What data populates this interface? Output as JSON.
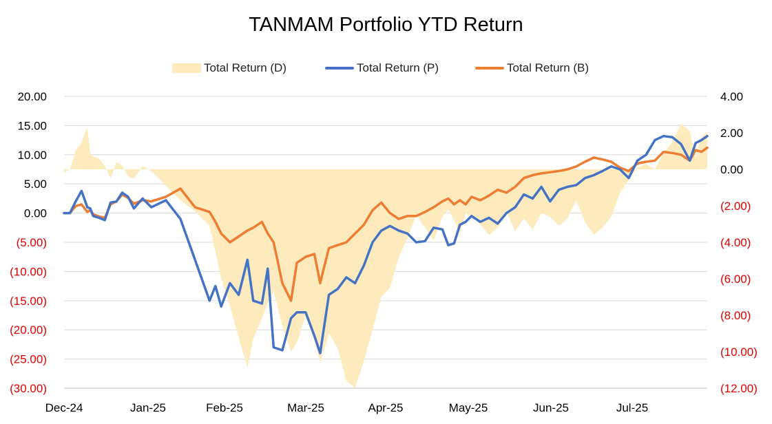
{
  "chart_data": {
    "type": "line",
    "title": "TANMAM Portfolio YTD Return",
    "xlabel": "",
    "ylabel": "",
    "x_ticks": [
      "Dec-24",
      "Jan-25",
      "Feb-25",
      "Mar-25",
      "Apr-25",
      "May-25",
      "Jun-25",
      "Jul-25"
    ],
    "y_left": {
      "range": [
        -30,
        20
      ],
      "ticks": [
        "20.00",
        "15.00",
        "10.00",
        "5.00",
        "0.00",
        "(5.00)",
        "(10.00)",
        "(15.00)",
        "(20.00)",
        "(25.00)",
        "(30.00)"
      ]
    },
    "y_right": {
      "range": [
        -12,
        4
      ],
      "ticks": [
        "4.00",
        "2.00",
        "0.00",
        "(2.00)",
        "(4.00)",
        "(6.00)",
        "(8.00)",
        "(10.00)",
        "(12.00)"
      ]
    },
    "negative_tick_color": "#e00000",
    "grid": true,
    "legend_position": "top",
    "series": [
      {
        "name": "Total Return (D)",
        "kind": "area",
        "axis": "right",
        "color": "#fdebbd",
        "x": [
          0,
          2,
          4,
          6,
          8,
          9,
          10,
          12,
          14,
          16,
          18,
          20,
          22,
          24,
          27,
          30,
          35,
          40,
          45,
          50,
          52,
          54,
          57,
          60,
          63,
          65,
          68,
          70,
          72,
          75,
          78,
          80,
          83,
          86,
          88,
          91,
          94,
          97,
          100,
          103,
          106,
          109,
          112,
          115,
          118,
          121,
          124,
          127,
          130,
          132,
          134,
          136,
          138,
          140,
          143,
          146,
          149,
          152,
          155,
          158,
          161,
          164,
          167,
          170,
          173,
          176,
          179,
          182,
          185,
          188,
          191,
          194,
          197,
          200,
          203,
          206,
          209,
          212,
          215,
          217,
          219,
          221
        ],
        "values": [
          -0.2,
          0.0,
          1.0,
          1.5,
          2.3,
          0.9,
          0.7,
          0.6,
          0.2,
          -0.5,
          0.4,
          0.2,
          -0.4,
          -0.5,
          0.2,
          -0.1,
          -0.9,
          -1.7,
          -2.3,
          -3.1,
          -4.5,
          -6.0,
          -7.5,
          -9.2,
          -10.9,
          -9.3,
          -8.2,
          -7.3,
          -6.7,
          -8.6,
          -10.0,
          -9.5,
          -8.0,
          -9.4,
          -10.6,
          -9.0,
          -9.8,
          -11.6,
          -12.0,
          -10.5,
          -8.8,
          -7.0,
          -6.5,
          -4.8,
          -3.8,
          -2.5,
          -3.2,
          -3.9,
          -2.6,
          -2.2,
          -2.8,
          -3.5,
          -2.4,
          -2.6,
          -3.0,
          -3.6,
          -3.2,
          -2.3,
          -3.4,
          -2.7,
          -3.3,
          -2.4,
          -2.6,
          -3.1,
          -2.7,
          -1.7,
          -2.9,
          -3.6,
          -3.2,
          -2.6,
          -1.3,
          -0.6,
          0.1,
          0.3,
          0.0,
          0.9,
          1.5,
          2.5,
          2.1,
          0.6,
          1.8,
          2.1
        ]
      },
      {
        "name": "Total Return (P)",
        "kind": "line",
        "axis": "left",
        "color": "#4472c4",
        "x": [
          0,
          2,
          4,
          6,
          8,
          9,
          10,
          12,
          14,
          16,
          18,
          20,
          22,
          24,
          27,
          30,
          35,
          40,
          45,
          50,
          52,
          54,
          57,
          60,
          63,
          65,
          68,
          70,
          72,
          75,
          78,
          80,
          83,
          86,
          88,
          91,
          94,
          97,
          100,
          103,
          106,
          109,
          112,
          115,
          118,
          121,
          124,
          127,
          130,
          132,
          134,
          136,
          138,
          140,
          143,
          146,
          149,
          152,
          155,
          158,
          161,
          164,
          167,
          170,
          173,
          176,
          179,
          182,
          185,
          188,
          191,
          194,
          197,
          200,
          203,
          206,
          209,
          212,
          215,
          217,
          219,
          221
        ],
        "values": [
          0.0,
          0.0,
          2.0,
          3.8,
          1.0,
          0.8,
          -0.5,
          -0.8,
          -1.2,
          1.8,
          2.0,
          3.5,
          2.8,
          0.8,
          2.5,
          1.0,
          2.2,
          -1.0,
          -8.0,
          -15.0,
          -12.5,
          -16.0,
          -12.0,
          -14.0,
          -8.0,
          -15.0,
          -15.5,
          -9.5,
          -23.0,
          -23.5,
          -18.0,
          -17.0,
          -17.0,
          -21.0,
          -24.0,
          -14.0,
          -13.0,
          -11.0,
          -12.0,
          -9.0,
          -5.0,
          -3.0,
          -2.2,
          -3.0,
          -3.5,
          -5.0,
          -4.8,
          -2.5,
          -2.8,
          -5.5,
          -5.2,
          -2.0,
          -1.5,
          -0.5,
          -1.5,
          -0.8,
          -1.8,
          0.0,
          1.0,
          3.2,
          2.5,
          4.5,
          2.0,
          4.0,
          4.5,
          4.8,
          6.0,
          6.5,
          7.2,
          8.0,
          7.5,
          6.0,
          9.0,
          10.0,
          12.5,
          13.2,
          13.0,
          11.8,
          9.0,
          12.0,
          12.5,
          13.2
        ]
      },
      {
        "name": "Total Return (B)",
        "kind": "line",
        "axis": "left",
        "color": "#ed7d31",
        "x": [
          0,
          2,
          4,
          6,
          8,
          9,
          10,
          12,
          14,
          16,
          18,
          20,
          22,
          24,
          27,
          30,
          35,
          40,
          45,
          50,
          52,
          54,
          57,
          60,
          63,
          65,
          68,
          70,
          72,
          75,
          78,
          80,
          83,
          86,
          88,
          91,
          94,
          97,
          100,
          103,
          106,
          109,
          112,
          115,
          118,
          121,
          124,
          127,
          130,
          132,
          134,
          136,
          138,
          140,
          143,
          146,
          149,
          152,
          155,
          158,
          161,
          164,
          167,
          170,
          173,
          176,
          179,
          182,
          185,
          188,
          191,
          194,
          197,
          200,
          203,
          206,
          209,
          212,
          215,
          217,
          219,
          221
        ],
        "values": [
          0.0,
          0.0,
          1.2,
          1.5,
          0.2,
          0.5,
          -0.2,
          -0.6,
          -0.8,
          1.5,
          2.0,
          3.2,
          2.6,
          1.6,
          2.2,
          2.0,
          2.8,
          4.2,
          1.0,
          0.2,
          -1.5,
          -3.5,
          -5.0,
          -4.0,
          -3.0,
          -2.5,
          -1.5,
          -3.5,
          -5.0,
          -12.0,
          -15.0,
          -8.5,
          -7.5,
          -7.0,
          -12.0,
          -6.0,
          -5.5,
          -5.0,
          -3.5,
          -2.0,
          0.5,
          1.8,
          0.0,
          -1.0,
          -0.5,
          -0.5,
          0.2,
          1.0,
          2.0,
          2.5,
          1.5,
          2.2,
          1.5,
          2.8,
          2.2,
          3.0,
          4.0,
          3.5,
          4.5,
          6.0,
          6.5,
          6.8,
          7.0,
          7.2,
          7.5,
          8.0,
          8.8,
          9.5,
          9.2,
          8.8,
          7.8,
          7.2,
          8.5,
          8.8,
          9.0,
          10.5,
          10.3,
          10.0,
          9.0,
          10.8,
          10.5,
          11.2
        ]
      }
    ]
  }
}
